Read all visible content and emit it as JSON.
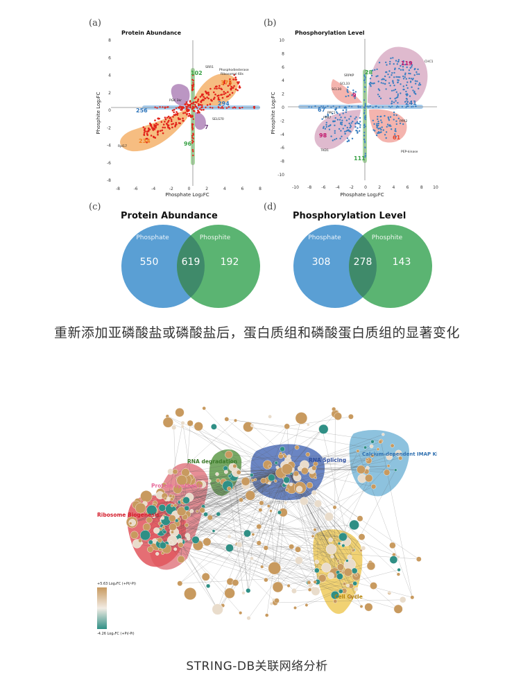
{
  "panels": {
    "a": {
      "letter": "(a)",
      "title": "Protein Abundance",
      "xlabel": "Phosphate Log₂FC",
      "ylabel": "Phosphite Log₂FC",
      "xticks": [
        "-8",
        "-6",
        "-4",
        "-2",
        "0",
        "2",
        "4",
        "6",
        "8"
      ],
      "yticks": [
        "8",
        "6",
        "4",
        "2",
        "0",
        "-2",
        "-4",
        "-6",
        "-8"
      ],
      "counts": {
        "q1": "375",
        "q3": "234",
        "up": "102",
        "down": "96",
        "left": "256",
        "right": "294",
        "purple_tl": "",
        "purple_br": "7"
      },
      "genes": [
        "SRR1",
        "Phosphodiesterase",
        "Ribosomal 60s",
        "PGK 3kr",
        "SELS70",
        "Rpl17"
      ]
    },
    "b": {
      "letter": "(b)",
      "title": "Phosphorylation Level",
      "xlabel": "Phosphate Log₂FC",
      "ylabel": "Phosphite Log₂FC",
      "xticks": [
        "-10",
        "-8",
        "-6",
        "-4",
        "-2",
        "0",
        "2",
        "4",
        "6",
        "8",
        "10"
      ],
      "yticks": [
        "10",
        "8",
        "6",
        "4",
        "2",
        "0",
        "-2",
        "-4",
        "-6",
        "-8",
        "-10"
      ],
      "counts": {
        "q1": "119",
        "q2": "9",
        "q3": "98",
        "q4": "61",
        "up": "28",
        "down": "111",
        "left": "67",
        "right": "241"
      },
      "genes": [
        "CHC1",
        "SRPKP",
        "SCL33",
        "SCL30",
        "PPC1",
        "PPR7",
        "PPR2",
        "TKD1",
        "PEP-kinase"
      ]
    },
    "c": {
      "letter": "(c)",
      "title": "Protein Abundance",
      "left_label": "Phosphate",
      "right_label": "Phosphite",
      "left_only": "550",
      "overlap": "619",
      "right_only": "192"
    },
    "d": {
      "letter": "(d)",
      "title": "Phosphorylation Level",
      "left_label": "Phosphate",
      "right_label": "Phosphite",
      "left_only": "308",
      "overlap": "278",
      "right_only": "143"
    }
  },
  "caption_top": "重新添加亚磷酸盐或磷酸盐后，蛋白质组和磷酸蛋白质组的显著变化",
  "network": {
    "clusters": [
      "RNA degradation",
      "RNA Splicing",
      "Calcium-dependent IMAP Kinases",
      "Protein synthesis",
      "Ribosome Biogenesis",
      "Cell Cycle"
    ],
    "legend_max": "+5.63 Log₂FC (+Pi/-Pi)",
    "legend_min": "-4.26 Log₂FC (+Pi/-Pi)"
  },
  "caption_bottom": "STRING-DB关联网络分析",
  "colors": {
    "red_points": "#e2231a",
    "blue_points": "#3a7fc1",
    "orange_region": "#f5b26b",
    "purple_region": "#b48bbd",
    "pink_region": "#f2a7a0",
    "mauve_region": "#d9aec5",
    "venn_blue": "#5a9fd4",
    "venn_green": "#5bb472",
    "node_brown": "#c89a5f",
    "node_teal": "#2f8f85"
  }
}
